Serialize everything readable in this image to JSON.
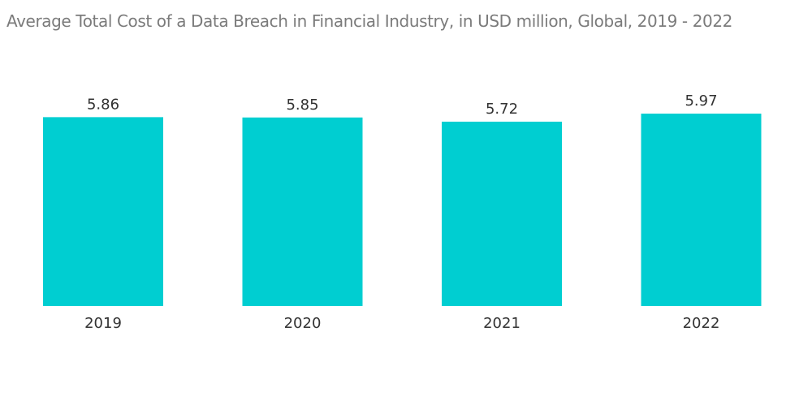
{
  "chart_data": {
    "type": "bar",
    "title": "Average Total Cost of a Data Breach in Financial Industry, in USD million, Global, 2019 - 2022",
    "categories": [
      "2019",
      "2020",
      "2021",
      "2022"
    ],
    "values": [
      5.86,
      5.85,
      5.72,
      5.97
    ],
    "value_labels": [
      "5.86",
      "5.85",
      "5.72",
      "5.97"
    ],
    "xlabel": "",
    "ylabel": "",
    "ylim": [
      0,
      5.97
    ],
    "grid": false,
    "legend": "none",
    "bar_color": "#00ced1"
  }
}
